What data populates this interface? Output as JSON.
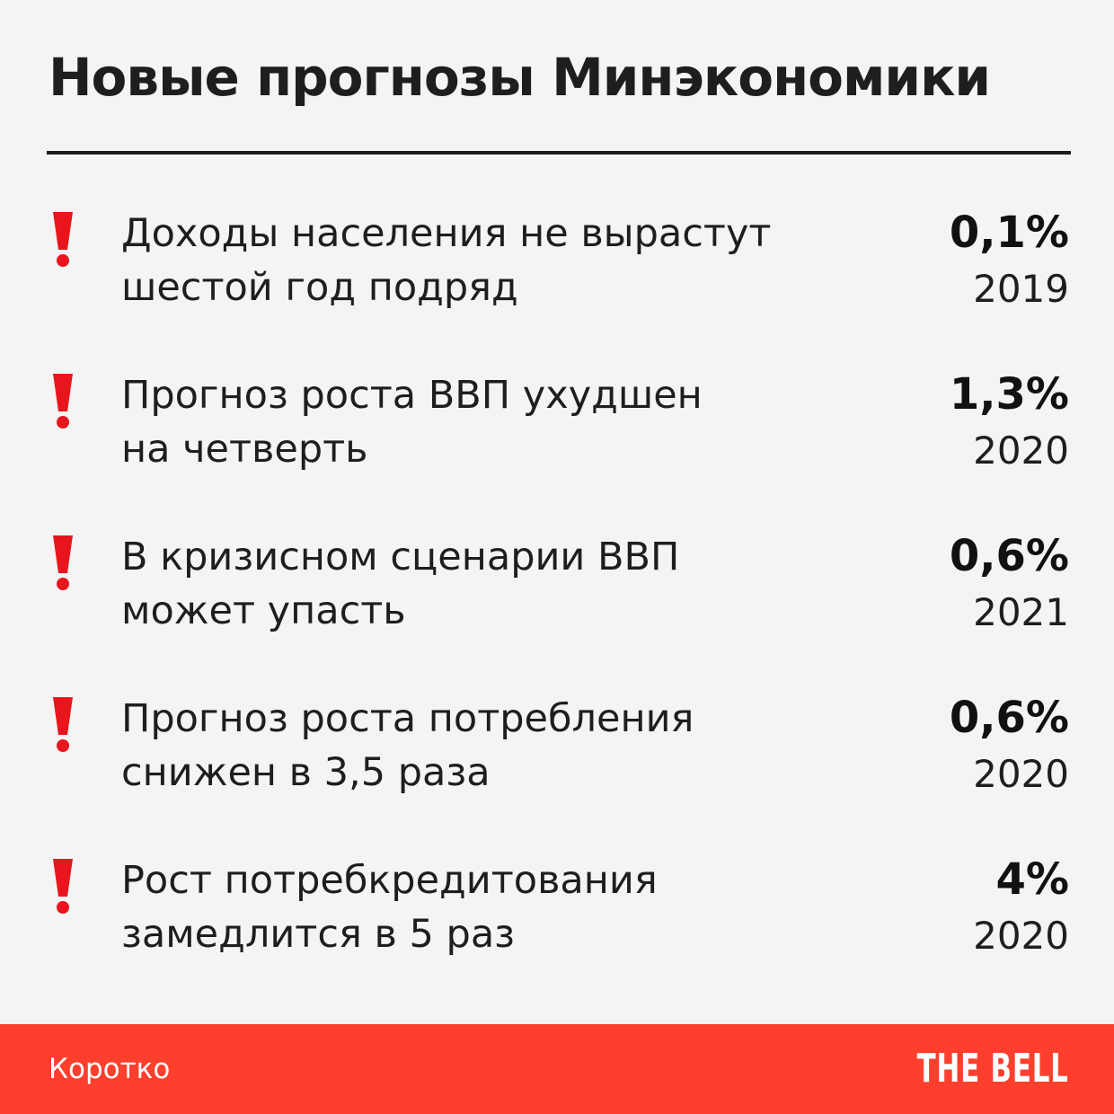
{
  "title": "Новые прогнозы Минэкономики",
  "items": [
    {
      "line1": "Доходы населения не вырастут",
      "line2": "шестой год подряд",
      "value": "0,1%",
      "year": "2019"
    },
    {
      "line1": "Прогноз роста ВВП ухудшен",
      "line2": "на четверть",
      "value": "1,3%",
      "year": "2020"
    },
    {
      "line1": "В кризисном сценарии ВВП",
      "line2": "может упасть",
      "value": "0,6%",
      "year": "2021"
    },
    {
      "line1": "Прогноз роста потребления",
      "line2": "снижен в 3,5 раза",
      "value": "0,6%",
      "year": "2020"
    },
    {
      "line1": "Рост потребкредитования",
      "line2": "замедлится в 5 раз",
      "value": "4%",
      "year": "2020"
    }
  ],
  "footer": {
    "label": "Коротко",
    "brand": "THE BELL"
  },
  "colors": {
    "accent": "#ff3f2d",
    "exclamation": "#e8161c",
    "text": "#1e1e1e",
    "background": "#f4f4f4"
  },
  "icons": {
    "item_marker": "exclamation-icon"
  }
}
